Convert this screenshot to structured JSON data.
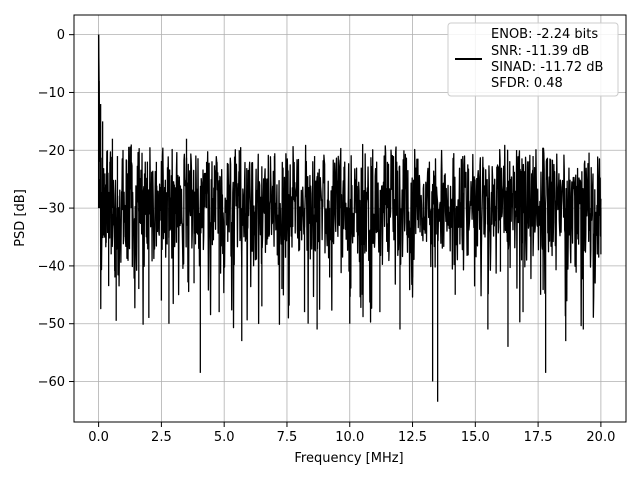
{
  "chart_data": {
    "type": "line",
    "title": "",
    "xlabel": "Frequency [MHz]",
    "ylabel": "PSD [dB]",
    "xlim": [
      -0.98,
      21.0
    ],
    "ylim": [
      -67,
      3.4
    ],
    "x_ticks": [
      0.0,
      2.5,
      5.0,
      7.5,
      10.0,
      12.5,
      15.0,
      17.5,
      20.0
    ],
    "x_tick_labels": [
      "0.0",
      "2.5",
      "5.0",
      "7.5",
      "10.0",
      "12.5",
      "15.0",
      "17.5",
      "20.0"
    ],
    "y_ticks": [
      0,
      -10,
      -20,
      -30,
      -40,
      -50,
      -60
    ],
    "y_tick_labels": [
      "0",
      "−10",
      "−20",
      "−30",
      "−40",
      "−50",
      "−60"
    ],
    "grid": true,
    "legend_position": "top-right",
    "legend_entries": [
      "ENOB: -2.24 bits",
      "SNR: -11.39 dB",
      "SINAD: -11.72 dB",
      "SFDR: 0.48"
    ],
    "series": [
      {
        "color": "#000000",
        "description": "noisy PSD trace from 0 to 20 MHz, peak at 0 dB at 0 MHz, floor mostly between -20 and -40 dB",
        "points": [
          [
            0.0,
            0
          ],
          [
            0.02,
            -8
          ],
          [
            0.05,
            -25
          ],
          [
            0.08,
            -12
          ],
          [
            0.12,
            -28
          ],
          [
            0.16,
            -15
          ],
          [
            0.2,
            -30
          ],
          [
            0.25,
            -24
          ],
          [
            0.3,
            -36
          ],
          [
            0.35,
            -20
          ],
          [
            0.4,
            -43.5
          ],
          [
            0.45,
            -22
          ],
          [
            0.5,
            -38
          ],
          [
            0.55,
            -18
          ],
          [
            0.6,
            -33
          ],
          [
            0.65,
            -42
          ],
          [
            0.7,
            -49.5
          ],
          [
            0.75,
            -21
          ],
          [
            1.0,
            -35
          ],
          [
            1.3,
            -19
          ],
          [
            1.6,
            -44
          ],
          [
            2.0,
            -49
          ],
          [
            2.3,
            -22
          ],
          [
            2.5,
            -46
          ],
          [
            2.8,
            -50
          ],
          [
            3.1,
            -36
          ],
          [
            3.5,
            -18
          ],
          [
            3.8,
            -43
          ],
          [
            4.05,
            -58.5
          ],
          [
            4.3,
            -22
          ],
          [
            4.8,
            -48
          ],
          [
            5.1,
            -33
          ],
          [
            5.6,
            -20
          ],
          [
            5.7,
            -53
          ],
          [
            6.2,
            -30
          ],
          [
            6.5,
            -47
          ],
          [
            7.0,
            -21
          ],
          [
            7.3,
            -44
          ],
          [
            7.7,
            -33
          ],
          [
            8.2,
            -48
          ],
          [
            8.6,
            -21
          ],
          [
            8.7,
            -51
          ],
          [
            9.2,
            -42
          ],
          [
            9.6,
            -23
          ],
          [
            10.0,
            -50
          ],
          [
            10.5,
            -45
          ],
          [
            11.2,
            -48
          ],
          [
            11.5,
            -22
          ],
          [
            12.0,
            -51
          ],
          [
            12.5,
            -42
          ],
          [
            12.8,
            -33
          ],
          [
            13.3,
            -60
          ],
          [
            13.5,
            -63.5
          ],
          [
            13.7,
            -30
          ],
          [
            14.2,
            -45
          ],
          [
            14.5,
            -21
          ],
          [
            15.0,
            -35
          ],
          [
            15.5,
            -51
          ],
          [
            16.0,
            -41
          ],
          [
            16.3,
            -54
          ],
          [
            16.6,
            -27
          ],
          [
            16.9,
            -48
          ],
          [
            17.3,
            -21
          ],
          [
            17.6,
            -45
          ],
          [
            17.8,
            -58.5
          ],
          [
            18.2,
            -30
          ],
          [
            18.6,
            -53
          ],
          [
            19.0,
            -27
          ],
          [
            19.3,
            -51
          ],
          [
            19.6,
            -32
          ],
          [
            20.0,
            -38
          ]
        ]
      }
    ]
  }
}
